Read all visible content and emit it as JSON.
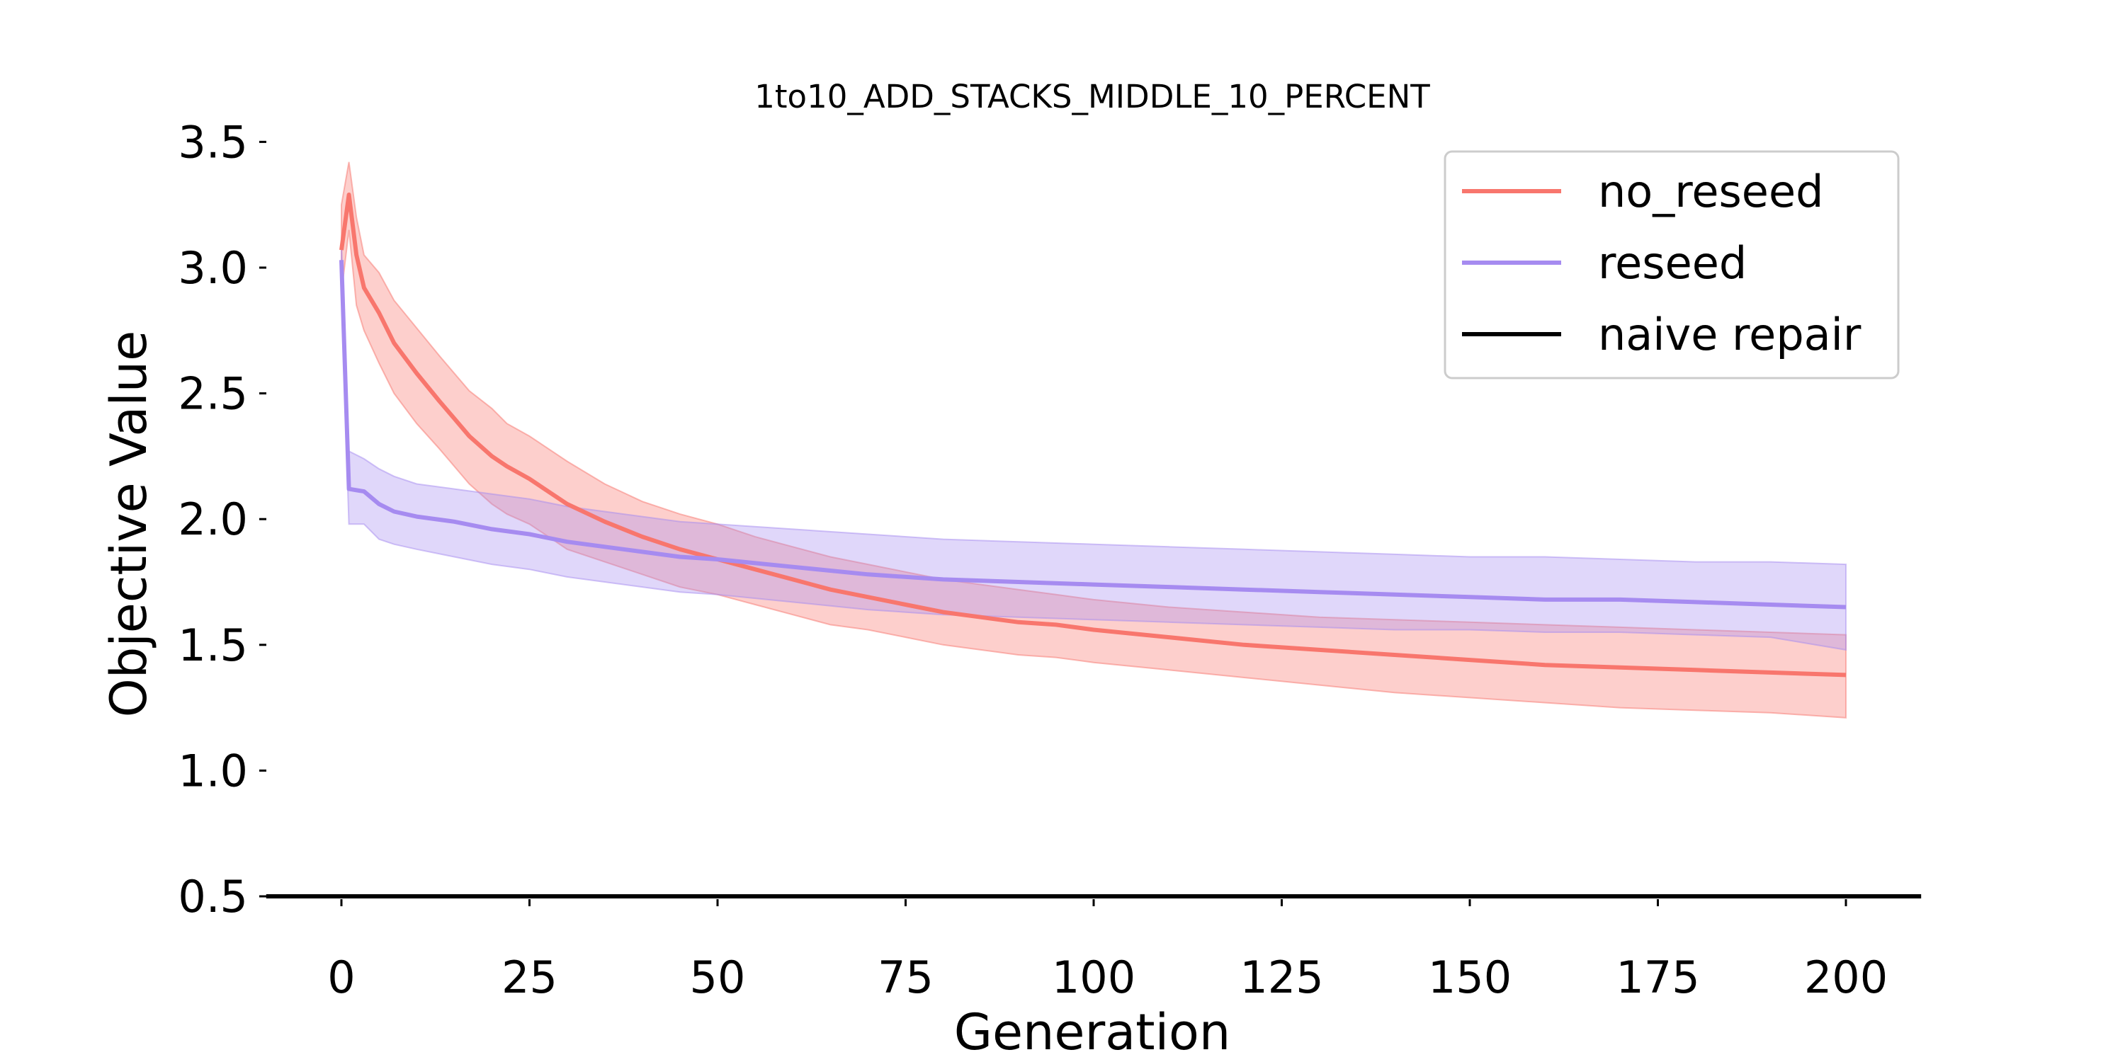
{
  "chart_data": {
    "type": "line",
    "title": "1to10_ADD_STACKS_MIDDLE_10_PERCENT",
    "xlabel": "Generation",
    "ylabel": "Objective Value",
    "xlim": [
      -10,
      210
    ],
    "ylim": [
      0.5,
      3.6
    ],
    "x_ticks": [
      0,
      25,
      50,
      75,
      100,
      125,
      150,
      175,
      200
    ],
    "y_ticks": [
      0.5,
      1.0,
      1.5,
      2.0,
      2.5,
      3.0,
      3.5
    ],
    "x_tick_labels": [
      "0",
      "25",
      "50",
      "75",
      "100",
      "125",
      "150",
      "175",
      "200"
    ],
    "y_tick_labels": [
      "0.5",
      "1.0",
      "1.5",
      "2.0",
      "2.5",
      "3.0",
      "3.5"
    ],
    "grid": false,
    "legend_position": "top-right",
    "series": [
      {
        "name": "no_reseed",
        "color": "#f8766d",
        "x": [
          0,
          1,
          2,
          3,
          5,
          7,
          10,
          13,
          15,
          17,
          20,
          22,
          25,
          28,
          30,
          35,
          40,
          45,
          50,
          55,
          60,
          65,
          70,
          75,
          80,
          85,
          90,
          95,
          100,
          110,
          120,
          130,
          140,
          150,
          160,
          170,
          180,
          190,
          200
        ],
        "y": [
          3.07,
          3.29,
          3.05,
          2.92,
          2.82,
          2.7,
          2.58,
          2.47,
          2.4,
          2.33,
          2.25,
          2.21,
          2.16,
          2.1,
          2.06,
          1.99,
          1.93,
          1.88,
          1.84,
          1.8,
          1.76,
          1.72,
          1.69,
          1.66,
          1.63,
          1.61,
          1.59,
          1.58,
          1.56,
          1.53,
          1.5,
          1.48,
          1.46,
          1.44,
          1.42,
          1.41,
          1.4,
          1.39,
          1.38
        ],
        "lower": [
          2.9,
          3.15,
          2.85,
          2.75,
          2.62,
          2.5,
          2.38,
          2.28,
          2.21,
          2.14,
          2.06,
          2.02,
          1.98,
          1.92,
          1.88,
          1.83,
          1.78,
          1.73,
          1.7,
          1.66,
          1.62,
          1.58,
          1.56,
          1.53,
          1.5,
          1.48,
          1.46,
          1.45,
          1.43,
          1.4,
          1.37,
          1.34,
          1.31,
          1.29,
          1.27,
          1.25,
          1.24,
          1.23,
          1.21
        ],
        "upper": [
          3.25,
          3.42,
          3.2,
          3.05,
          2.98,
          2.87,
          2.76,
          2.65,
          2.58,
          2.51,
          2.44,
          2.38,
          2.33,
          2.27,
          2.23,
          2.14,
          2.07,
          2.02,
          1.98,
          1.93,
          1.89,
          1.85,
          1.82,
          1.79,
          1.76,
          1.74,
          1.72,
          1.7,
          1.68,
          1.65,
          1.63,
          1.61,
          1.6,
          1.59,
          1.58,
          1.57,
          1.56,
          1.55,
          1.54
        ]
      },
      {
        "name": "reseed",
        "color": "#a68bf0",
        "x": [
          0,
          1,
          3,
          5,
          7,
          10,
          15,
          20,
          25,
          30,
          35,
          40,
          45,
          50,
          60,
          70,
          80,
          90,
          100,
          110,
          120,
          130,
          140,
          150,
          160,
          170,
          180,
          190,
          200
        ],
        "y": [
          3.03,
          2.12,
          2.11,
          2.06,
          2.03,
          2.01,
          1.99,
          1.96,
          1.94,
          1.91,
          1.89,
          1.87,
          1.85,
          1.84,
          1.81,
          1.78,
          1.76,
          1.75,
          1.74,
          1.73,
          1.72,
          1.71,
          1.7,
          1.69,
          1.68,
          1.68,
          1.67,
          1.66,
          1.65
        ],
        "lower": [
          2.9,
          1.98,
          1.98,
          1.92,
          1.9,
          1.88,
          1.85,
          1.82,
          1.8,
          1.77,
          1.75,
          1.73,
          1.71,
          1.7,
          1.67,
          1.64,
          1.62,
          1.61,
          1.6,
          1.59,
          1.58,
          1.57,
          1.56,
          1.56,
          1.55,
          1.55,
          1.54,
          1.53,
          1.48
        ],
        "upper": [
          3.1,
          2.27,
          2.24,
          2.2,
          2.17,
          2.14,
          2.12,
          2.1,
          2.08,
          2.05,
          2.03,
          2.01,
          1.99,
          1.98,
          1.96,
          1.94,
          1.92,
          1.91,
          1.9,
          1.89,
          1.88,
          1.87,
          1.86,
          1.85,
          1.85,
          1.84,
          1.83,
          1.83,
          1.82
        ]
      },
      {
        "name": "naive repair",
        "color": "#000000",
        "x": [
          -10,
          210
        ],
        "y": [
          0.5,
          0.5
        ]
      }
    ],
    "band_opacity": 0.35
  }
}
